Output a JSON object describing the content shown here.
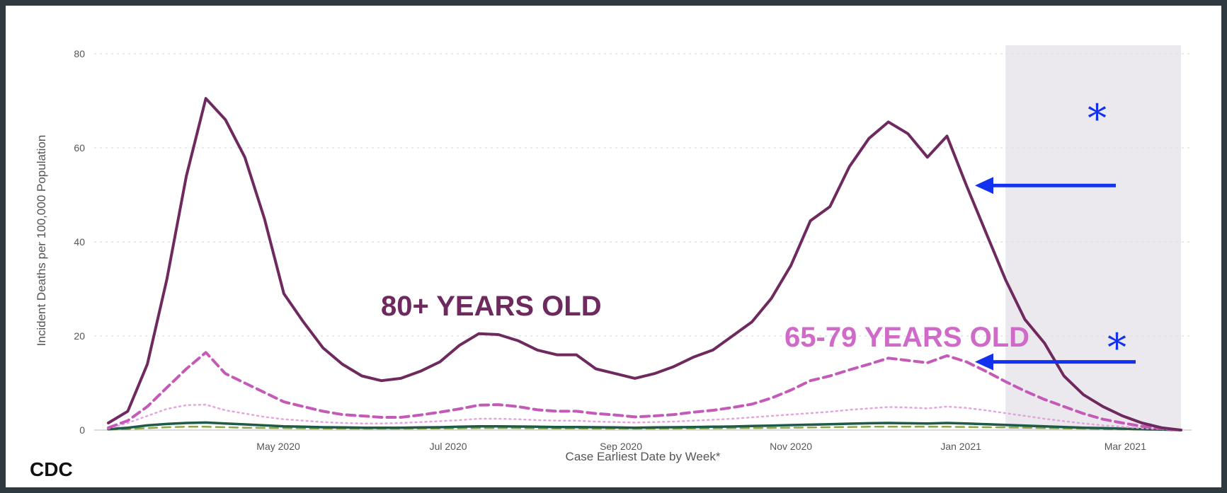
{
  "brand": "CDC",
  "chart_data": {
    "type": "line",
    "xlabel": "Case Earliest Date by Week*",
    "ylabel": "Incident Deaths per 100,000 Population",
    "ylim": [
      0,
      80
    ],
    "y_ticks": [
      0,
      20,
      40,
      60,
      80
    ],
    "grid": true,
    "x_tick_labels": [
      "May 2020",
      "Jul 2020",
      "Sep 2020",
      "Nov 2020",
      "Jan 2021",
      "Mar 2021"
    ],
    "shaded_region_note": "most recent weeks (incomplete data) shaded grey",
    "x": [
      "2020-03-01",
      "2020-03-08",
      "2020-03-15",
      "2020-03-22",
      "2020-03-29",
      "2020-04-05",
      "2020-04-12",
      "2020-04-19",
      "2020-04-26",
      "2020-05-03",
      "2020-05-10",
      "2020-05-17",
      "2020-05-24",
      "2020-05-31",
      "2020-06-07",
      "2020-06-14",
      "2020-06-21",
      "2020-06-28",
      "2020-07-05",
      "2020-07-12",
      "2020-07-19",
      "2020-07-26",
      "2020-08-02",
      "2020-08-09",
      "2020-08-16",
      "2020-08-23",
      "2020-08-30",
      "2020-09-06",
      "2020-09-13",
      "2020-09-20",
      "2020-09-27",
      "2020-10-04",
      "2020-10-11",
      "2020-10-18",
      "2020-10-25",
      "2020-11-01",
      "2020-11-08",
      "2020-11-15",
      "2020-11-22",
      "2020-11-29",
      "2020-12-06",
      "2020-12-13",
      "2020-12-20",
      "2020-12-27",
      "2021-01-03",
      "2021-01-10",
      "2021-01-17",
      "2021-01-24",
      "2021-01-31",
      "2021-02-07",
      "2021-02-14",
      "2021-02-21",
      "2021-02-28",
      "2021-03-07",
      "2021-03-14",
      "2021-03-21"
    ],
    "series": [
      {
        "name": "80+ YEARS OLD",
        "color": "#6e2a5e",
        "style": "solid",
        "values": [
          1.5,
          4,
          14,
          32,
          54,
          70.5,
          66,
          58,
          45,
          29,
          23,
          17.5,
          14,
          11.5,
          10.5,
          11,
          12.5,
          14.5,
          18,
          20.5,
          20.3,
          19,
          17,
          16,
          16,
          13,
          12,
          11,
          12,
          13.5,
          15.5,
          17,
          20,
          23,
          28,
          35,
          44.5,
          47.5,
          56,
          62,
          65.5,
          63,
          58,
          62.5,
          52,
          42,
          32,
          23.5,
          18.5,
          11.5,
          7.5,
          5,
          3,
          1.5,
          0.5,
          0
        ]
      },
      {
        "name": "65-79 YEARS OLD",
        "color": "#c45ab8",
        "style": "dashed",
        "values": [
          0.5,
          2,
          5,
          9,
          13,
          16.5,
          12,
          10,
          8,
          6,
          5,
          4,
          3.3,
          3,
          2.7,
          2.7,
          3.2,
          3.8,
          4.5,
          5.3,
          5.4,
          5,
          4.3,
          4,
          4,
          3.5,
          3.2,
          2.8,
          3,
          3.3,
          3.8,
          4.2,
          4.8,
          5.5,
          6.8,
          8.5,
          10.5,
          11.5,
          12.8,
          14,
          15.3,
          14.8,
          14.3,
          15.8,
          14.5,
          12.5,
          10.3,
          8.3,
          6.5,
          5,
          3.5,
          2.3,
          1.5,
          0.8,
          0.3,
          0
        ]
      },
      {
        "name": "",
        "color": "#e6a3dd",
        "style": "dotted",
        "values": [
          0.3,
          1.5,
          3,
          4.5,
          5.3,
          5.4,
          4.2,
          3.5,
          2.8,
          2.3,
          2,
          1.7,
          1.5,
          1.4,
          1.4,
          1.5,
          1.7,
          1.9,
          2.1,
          2.4,
          2.4,
          2.3,
          2.1,
          2,
          2,
          1.8,
          1.7,
          1.6,
          1.7,
          1.8,
          2,
          2.2,
          2.4,
          2.7,
          3,
          3.3,
          3.6,
          3.9,
          4.3,
          4.6,
          4.9,
          4.8,
          4.6,
          5,
          4.7,
          4.2,
          3.6,
          3,
          2.4,
          1.9,
          1.4,
          1,
          0.7,
          0.4,
          0.2,
          0
        ]
      },
      {
        "name": "",
        "color": "#1f5a46",
        "style": "solid",
        "values": [
          0.2,
          0.5,
          1,
          1.3,
          1.5,
          1.6,
          1.4,
          1.2,
          1,
          0.8,
          0.7,
          0.6,
          0.55,
          0.5,
          0.5,
          0.5,
          0.55,
          0.6,
          0.7,
          0.8,
          0.8,
          0.75,
          0.7,
          0.65,
          0.65,
          0.6,
          0.55,
          0.5,
          0.55,
          0.6,
          0.65,
          0.7,
          0.75,
          0.85,
          0.95,
          1.05,
          1.15,
          1.25,
          1.35,
          1.45,
          1.5,
          1.45,
          1.4,
          1.5,
          1.4,
          1.25,
          1.1,
          0.95,
          0.8,
          0.65,
          0.5,
          0.4,
          0.3,
          0.2,
          0.1,
          0
        ]
      },
      {
        "name": "",
        "color": "#8aa84a",
        "style": "dashed",
        "values": [
          0.1,
          0.2,
          0.4,
          0.6,
          0.7,
          0.7,
          0.6,
          0.5,
          0.45,
          0.4,
          0.35,
          0.3,
          0.3,
          0.3,
          0.3,
          0.3,
          0.3,
          0.35,
          0.35,
          0.4,
          0.4,
          0.4,
          0.35,
          0.35,
          0.35,
          0.3,
          0.3,
          0.3,
          0.3,
          0.3,
          0.35,
          0.35,
          0.4,
          0.4,
          0.45,
          0.5,
          0.55,
          0.6,
          0.65,
          0.7,
          0.7,
          0.7,
          0.7,
          0.7,
          0.65,
          0.6,
          0.55,
          0.5,
          0.4,
          0.35,
          0.3,
          0.2,
          0.15,
          0.1,
          0.05,
          0
        ]
      }
    ],
    "annotations": [
      {
        "text": "80+ YEARS OLD",
        "color": "#6e2a5e"
      },
      {
        "text": "65-79 YEARS OLD",
        "color": "#d06ac8"
      },
      {
        "text": "*",
        "color": "#1232f0",
        "points_to": "80+ YEARS OLD at 2021-01-03"
      },
      {
        "text": "*",
        "color": "#1232f0",
        "points_to": "65-79 YEARS OLD at 2021-01-03"
      }
    ]
  }
}
